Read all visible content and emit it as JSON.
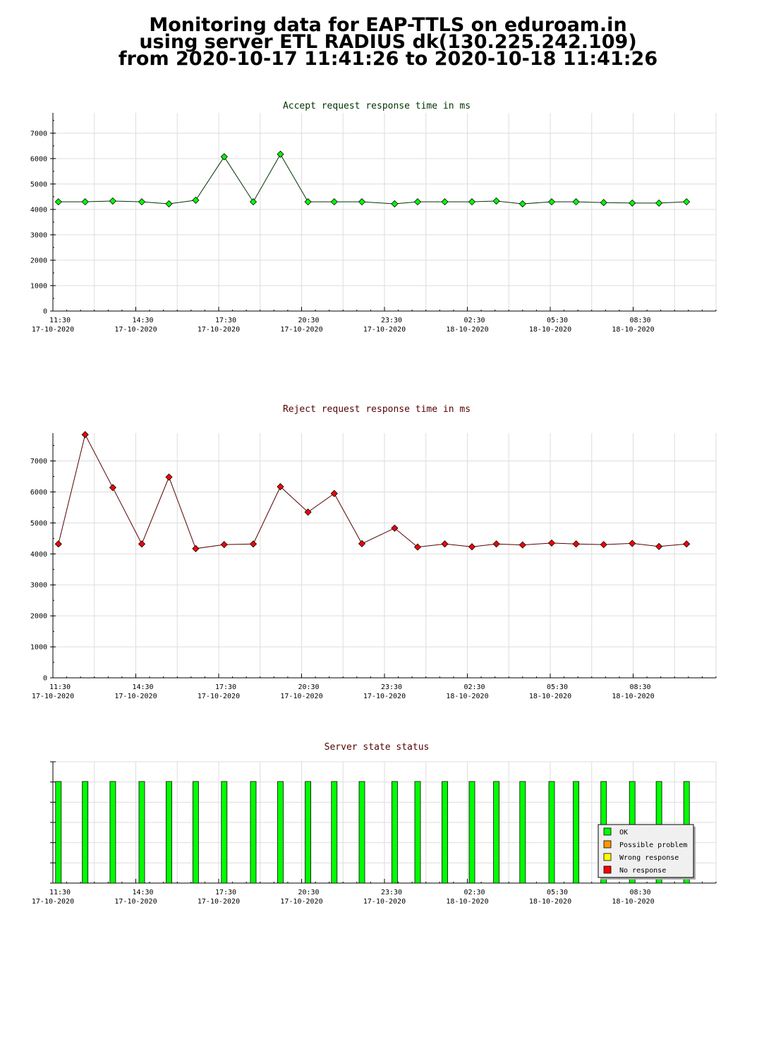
{
  "page": {
    "title_lines": [
      "Monitoring data for EAP-TTLS on eduroam.in",
      "using server ETL RADIUS dk(130.225.242.109)",
      "from 2020-10-17 11:41:26 to 2020-10-18 11:41:26"
    ]
  },
  "colors": {
    "accept_line": "#003300",
    "accept_marker": "#00ff00",
    "reject_line": "#550000",
    "reject_marker": "#ff0000",
    "status_ok": "#00ff00",
    "status_possible_problem": "#ff9900",
    "status_wrong_response": "#ffff00",
    "status_no_response": "#ff0000",
    "grid": "#dddddd",
    "accept_title": "#003300",
    "reject_title": "#550000",
    "status_title": "#550000"
  },
  "chart_data": [
    {
      "type": "line",
      "title": "Accept request response time in ms",
      "xlabel": "",
      "ylabel": "",
      "ylim": [
        0,
        7800
      ],
      "yticks": [
        0,
        1000,
        2000,
        3000,
        4000,
        5000,
        6000,
        7000
      ],
      "xlim": [
        "2020-10-17 11:30",
        "2020-10-18 11:30"
      ],
      "xtick_labels": [
        {
          "time": "11:30",
          "date": "17-10-2020"
        },
        {
          "time": "14:30",
          "date": "17-10-2020"
        },
        {
          "time": "17:30",
          "date": "17-10-2020"
        },
        {
          "time": "20:30",
          "date": "17-10-2020"
        },
        {
          "time": "23:30",
          "date": "17-10-2020"
        },
        {
          "time": "02:30",
          "date": "18-10-2020"
        },
        {
          "time": "05:30",
          "date": "18-10-2020"
        },
        {
          "time": "08:30",
          "date": "18-10-2020"
        }
      ],
      "grid": true,
      "series": [
        {
          "x": [
            "2020-10-17 11:42",
            "2020-10-17 12:40",
            "2020-10-17 13:40",
            "2020-10-17 14:43",
            "2020-10-17 15:42",
            "2020-10-17 16:40",
            "2020-10-17 17:42",
            "2020-10-17 18:45",
            "2020-10-17 19:44",
            "2020-10-17 20:44",
            "2020-10-17 21:41",
            "2020-10-17 22:41",
            "2020-10-17 23:52",
            "2020-10-18 00:42",
            "2020-10-18 01:41",
            "2020-10-18 02:40",
            "2020-10-18 03:33",
            "2020-10-18 04:30",
            "2020-10-18 05:33",
            "2020-10-18 06:26",
            "2020-10-18 07:26",
            "2020-10-18 08:28",
            "2020-10-18 09:26",
            "2020-10-18 10:26"
          ],
          "values": [
            4300,
            4300,
            4330,
            4300,
            4220,
            4360,
            6070,
            4300,
            6170,
            4300,
            4300,
            4300,
            4220,
            4300,
            4300,
            4300,
            4330,
            4220,
            4300,
            4300,
            4270,
            4250,
            4250,
            4300
          ]
        }
      ]
    },
    {
      "type": "line",
      "title": "Reject request response time in ms",
      "xlabel": "",
      "ylabel": "",
      "ylim": [
        0,
        7900
      ],
      "yticks": [
        0,
        1000,
        2000,
        3000,
        4000,
        5000,
        6000,
        7000
      ],
      "xlim": [
        "2020-10-17 11:30",
        "2020-10-18 11:30"
      ],
      "xtick_labels": [
        {
          "time": "11:30",
          "date": "17-10-2020"
        },
        {
          "time": "14:30",
          "date": "17-10-2020"
        },
        {
          "time": "17:30",
          "date": "17-10-2020"
        },
        {
          "time": "20:30",
          "date": "17-10-2020"
        },
        {
          "time": "23:30",
          "date": "17-10-2020"
        },
        {
          "time": "02:30",
          "date": "18-10-2020"
        },
        {
          "time": "05:30",
          "date": "18-10-2020"
        },
        {
          "time": "08:30",
          "date": "18-10-2020"
        }
      ],
      "grid": true,
      "series": [
        {
          "x": [
            "2020-10-17 11:42",
            "2020-10-17 12:40",
            "2020-10-17 13:40",
            "2020-10-17 14:43",
            "2020-10-17 15:42",
            "2020-10-17 16:40",
            "2020-10-17 17:42",
            "2020-10-17 18:45",
            "2020-10-17 19:44",
            "2020-10-17 20:44",
            "2020-10-17 21:41",
            "2020-10-17 22:41",
            "2020-10-17 23:52",
            "2020-10-18 00:42",
            "2020-10-18 01:41",
            "2020-10-18 02:40",
            "2020-10-18 03:33",
            "2020-10-18 04:30",
            "2020-10-18 05:33",
            "2020-10-18 06:26",
            "2020-10-18 07:26",
            "2020-10-18 08:28",
            "2020-10-18 09:26",
            "2020-10-18 10:26"
          ],
          "values": [
            4320,
            7850,
            6140,
            4320,
            6480,
            4170,
            4300,
            4320,
            6170,
            5350,
            5950,
            4330,
            4830,
            4220,
            4320,
            4230,
            4320,
            4290,
            4350,
            4320,
            4300,
            4340,
            4240,
            4320
          ]
        }
      ]
    },
    {
      "type": "bar",
      "title": "Server state status",
      "xlabel": "",
      "ylabel": "",
      "xlim": [
        "2020-10-17 11:30",
        "2020-10-18 11:30"
      ],
      "xtick_labels": [
        {
          "time": "11:30",
          "date": "17-10-2020"
        },
        {
          "time": "14:30",
          "date": "17-10-2020"
        },
        {
          "time": "17:30",
          "date": "17-10-2020"
        },
        {
          "time": "20:30",
          "date": "17-10-2020"
        },
        {
          "time": "23:30",
          "date": "17-10-2020"
        },
        {
          "time": "02:30",
          "date": "18-10-2020"
        },
        {
          "time": "05:30",
          "date": "18-10-2020"
        },
        {
          "time": "08:30",
          "date": "18-10-2020"
        }
      ],
      "grid": true,
      "legend_position": "bottom-right",
      "legend": [
        "OK",
        "Possible problem",
        "Wrong response",
        "No response"
      ],
      "series": [
        {
          "name": "OK",
          "x": [
            "2020-10-17 11:42",
            "2020-10-17 12:40",
            "2020-10-17 13:40",
            "2020-10-17 14:43",
            "2020-10-17 15:42",
            "2020-10-17 16:40",
            "2020-10-17 17:42",
            "2020-10-17 18:45",
            "2020-10-17 19:44",
            "2020-10-17 20:44",
            "2020-10-17 21:41",
            "2020-10-17 22:41",
            "2020-10-17 23:52",
            "2020-10-18 00:42",
            "2020-10-18 01:41",
            "2020-10-18 02:40",
            "2020-10-18 03:33",
            "2020-10-18 04:30",
            "2020-10-18 05:33",
            "2020-10-18 06:26",
            "2020-10-18 07:26",
            "2020-10-18 08:28",
            "2020-10-18 09:26",
            "2020-10-18 10:26"
          ],
          "values": [
            1,
            1,
            1,
            1,
            1,
            1,
            1,
            1,
            1,
            1,
            1,
            1,
            1,
            1,
            1,
            1,
            1,
            1,
            1,
            1,
            1,
            1,
            1,
            1
          ]
        }
      ]
    }
  ]
}
